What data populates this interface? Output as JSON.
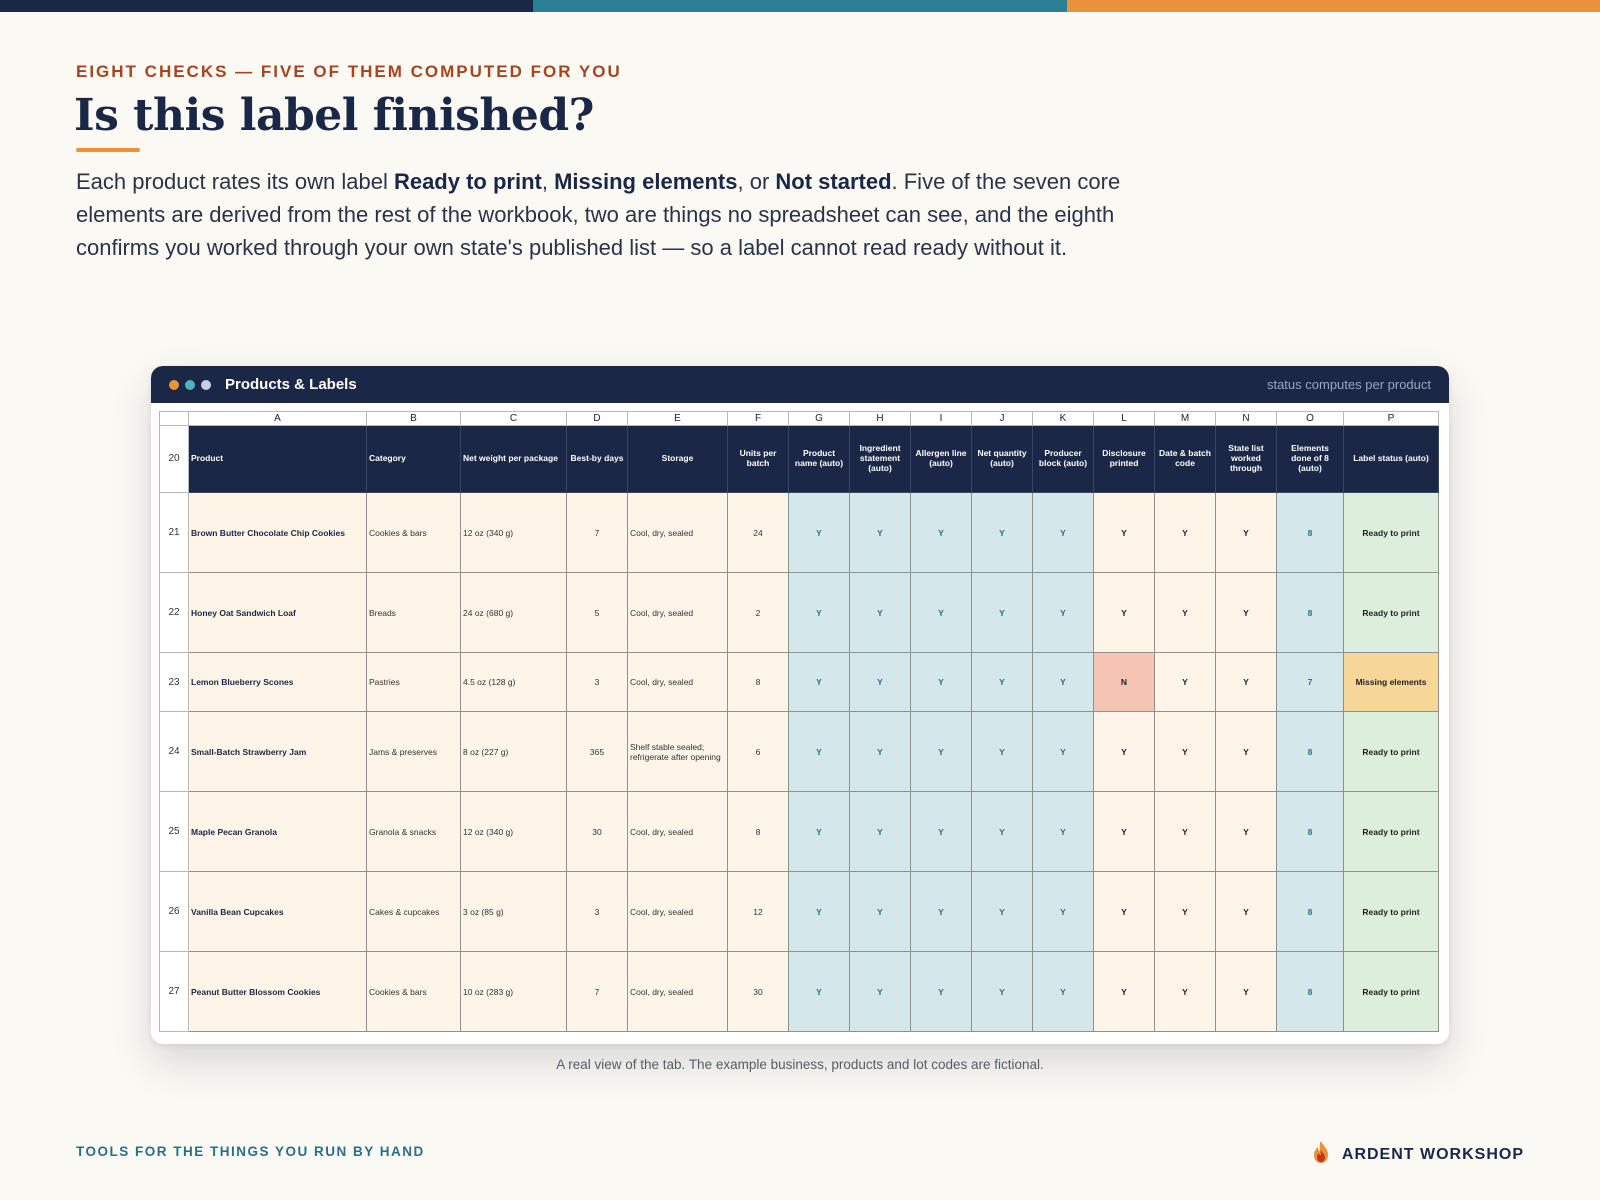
{
  "colors": {
    "navy": "#1b2747",
    "teal": "#2a7f95",
    "orange": "#e8923a",
    "rust": "#a8441e"
  },
  "header": {
    "eyebrow": "EIGHT CHECKS — FIVE OF THEM COMPUTED FOR YOU",
    "title": "Is this label finished?",
    "lead": {
      "p1": "Each product rates its own label ",
      "b1": "Ready to print",
      "p2": ", ",
      "b2": "Missing elements",
      "p3": ", or ",
      "b3": "Not started",
      "p4": ". Five of the seven core elements are derived from the rest of the workbook, two are things no spreadsheet can see, and the eighth confirms you worked through your own state's published list — so a label cannot read ready without it."
    }
  },
  "window": {
    "title": "Products & Labels",
    "hint": "status computes per product",
    "dots": [
      "#e8923a",
      "#4fb3bf",
      "#c9cfe0"
    ]
  },
  "sheet": {
    "columns": [
      "A",
      "B",
      "C",
      "D",
      "E",
      "F",
      "G",
      "H",
      "I",
      "J",
      "K",
      "L",
      "M",
      "N",
      "O",
      "P"
    ],
    "header_row": "20",
    "headers": [
      "Product",
      "Category",
      "Net weight per package",
      "Best-by days",
      "Storage",
      "Units per batch",
      "Product name (auto)",
      "Ingredient statement (auto)",
      "Allergen line (auto)",
      "Net quantity (auto)",
      "Producer block (auto)",
      "Disclosure printed",
      "Date & batch code",
      "State list worked through",
      "Elements done of 8 (auto)",
      "Label status (auto)"
    ],
    "rows": [
      {
        "num": "21",
        "cells": [
          "Brown Butter Chocolate Chip Cookies",
          "Cookies & bars",
          "12 oz (340 g)",
          "7",
          "Cool, dry, sealed",
          "24",
          "Y",
          "Y",
          "Y",
          "Y",
          "Y",
          "Y",
          "Y",
          "Y",
          "8",
          "Ready to print"
        ]
      },
      {
        "num": "22",
        "cells": [
          "Honey Oat Sandwich Loaf",
          "Breads",
          "24 oz (680 g)",
          "5",
          "Cool, dry, sealed",
          "2",
          "Y",
          "Y",
          "Y",
          "Y",
          "Y",
          "Y",
          "Y",
          "Y",
          "8",
          "Ready to print"
        ]
      },
      {
        "num": "23",
        "cells": [
          "Lemon Blueberry Scones",
          "Pastries",
          "4.5 oz (128 g)",
          "3",
          "Cool, dry, sealed",
          "8",
          "Y",
          "Y",
          "Y",
          "Y",
          "Y",
          "N",
          "Y",
          "Y",
          "7",
          "Missing elements"
        ]
      },
      {
        "num": "24",
        "cells": [
          "Small-Batch Strawberry Jam",
          "Jams & preserves",
          "8 oz (227 g)",
          "365",
          "Shelf stable sealed; refrigerate after opening",
          "6",
          "Y",
          "Y",
          "Y",
          "Y",
          "Y",
          "Y",
          "Y",
          "Y",
          "8",
          "Ready to print"
        ]
      },
      {
        "num": "25",
        "cells": [
          "Maple Pecan Granola",
          "Granola & snacks",
          "12 oz (340 g)",
          "30",
          "Cool, dry, sealed",
          "8",
          "Y",
          "Y",
          "Y",
          "Y",
          "Y",
          "Y",
          "Y",
          "Y",
          "8",
          "Ready to print"
        ]
      },
      {
        "num": "26",
        "cells": [
          "Vanilla Bean Cupcakes",
          "Cakes & cupcakes",
          "3 oz (85 g)",
          "3",
          "Cool, dry, sealed",
          "12",
          "Y",
          "Y",
          "Y",
          "Y",
          "Y",
          "Y",
          "Y",
          "Y",
          "8",
          "Ready to print"
        ]
      },
      {
        "num": "27",
        "cells": [
          "Peanut Butter Blossom Cookies",
          "Cookies & bars",
          "10 oz (283 g)",
          "7",
          "Cool, dry, sealed",
          "30",
          "Y",
          "Y",
          "Y",
          "Y",
          "Y",
          "Y",
          "Y",
          "Y",
          "8",
          "Ready to print"
        ]
      }
    ]
  },
  "caption": "A real view of the tab. The example business, products and lot codes are fictional.",
  "footer": {
    "tagline": "TOOLS FOR THE THINGS YOU RUN BY HAND",
    "brand": "ARDENT WORKSHOP",
    "logo_icon": "flame-icon"
  }
}
